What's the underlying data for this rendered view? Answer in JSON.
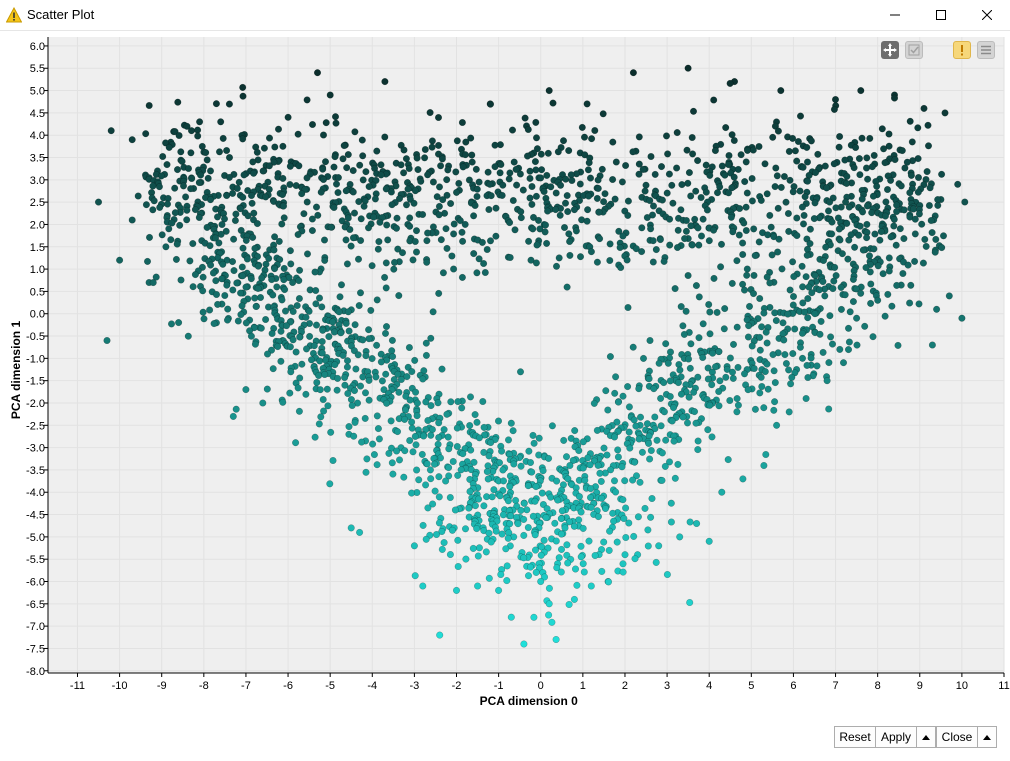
{
  "window": {
    "title": "Scatter Plot",
    "icon": "warning-triangle-icon",
    "controls": [
      "minimize-icon",
      "maximize-icon",
      "close-icon"
    ]
  },
  "toolbar": {
    "icons": [
      "move-pan-icon",
      "select-check-icon",
      "warning-exclamation-icon",
      "menu-lines-icon"
    ]
  },
  "chart_data": {
    "type": "scatter",
    "title": "",
    "xlabel": "PCA dimension 0",
    "ylabel": "PCA dimension 1",
    "xlim": [
      -11.7,
      11
    ],
    "ylim": [
      -8.05,
      6.2
    ],
    "x_ticks": [
      -11,
      -10,
      -9,
      -8,
      -7,
      -6,
      -5,
      -4,
      -3,
      -2,
      -1,
      0,
      1,
      2,
      3,
      4,
      5,
      6,
      7,
      8,
      9,
      10,
      11
    ],
    "y_ticks": [
      "-8.0",
      "-7.5",
      "-7.0",
      "-6.5",
      "-6.0",
      "-5.5",
      "-5.0",
      "-4.5",
      "-4.0",
      "-3.5",
      "-3.0",
      "-2.5",
      "-2.0",
      "-1.5",
      "-1.0",
      "-0.5",
      "0.0",
      "0.5",
      "1.0",
      "1.5",
      "2.0",
      "2.5",
      "3.0",
      "3.5",
      "4.0",
      "4.5",
      "5.0",
      "5.5",
      "6.0"
    ],
    "grid": true,
    "color_gradient": {
      "high": "#0b2d2b",
      "mid": "#17807a",
      "low": "#20e2dc"
    },
    "point_count_approx": 2600,
    "series": [
      {
        "values": [
          [
            -10.5,
            2.5
          ],
          [
            -10.3,
            -0.6
          ],
          [
            -10.2,
            4.1
          ],
          [
            -10.0,
            1.2
          ],
          [
            -9.7,
            3.9
          ],
          [
            -9.7,
            2.1
          ],
          [
            -9.3,
            0.7
          ],
          [
            -9.1,
            3.2
          ],
          [
            -8.9,
            1.5
          ],
          [
            -8.6,
            -0.2
          ],
          [
            -8.4,
            4.2
          ],
          [
            -8.1,
            4.3
          ],
          [
            -7.6,
            4.3
          ],
          [
            -7.3,
            -2.3
          ],
          [
            -7.0,
            -1.7
          ],
          [
            -6.6,
            -2.0
          ],
          [
            -6.0,
            4.4
          ],
          [
            -5.3,
            5.4
          ],
          [
            -5.0,
            4.9
          ],
          [
            -4.5,
            -4.8
          ],
          [
            -4.3,
            -4.9
          ],
          [
            -3.7,
            5.2
          ],
          [
            -3.0,
            -5.2
          ],
          [
            -2.8,
            -6.1
          ],
          [
            -2.4,
            -7.2
          ],
          [
            -2.0,
            -6.2
          ],
          [
            -1.5,
            -6.1
          ],
          [
            -1.0,
            -6.2
          ],
          [
            -0.7,
            -6.8
          ],
          [
            -0.4,
            -7.4
          ],
          [
            0.0,
            -6.0
          ],
          [
            0.2,
            -6.5
          ],
          [
            0.4,
            -5.6
          ],
          [
            0.8,
            -6.4
          ],
          [
            1.2,
            -6.1
          ],
          [
            1.6,
            -6.0
          ],
          [
            2.0,
            -5.4
          ],
          [
            2.3,
            -5.4
          ],
          [
            2.8,
            -5.2
          ],
          [
            3.3,
            -5.0
          ],
          [
            3.7,
            -4.7
          ],
          [
            4.0,
            -5.1
          ],
          [
            4.3,
            -4.0
          ],
          [
            4.8,
            -3.7
          ],
          [
            5.3,
            -3.4
          ],
          [
            5.6,
            -2.5
          ],
          [
            5.9,
            -2.2
          ],
          [
            6.3,
            -1.9
          ],
          [
            6.8,
            -1.5
          ],
          [
            7.1,
            -0.8
          ],
          [
            7.5,
            -0.1
          ],
          [
            8.0,
            0.3
          ],
          [
            8.6,
            0.9
          ],
          [
            9.3,
            -0.7
          ],
          [
            9.4,
            0.1
          ],
          [
            9.7,
            0.4
          ],
          [
            10.0,
            -0.1
          ],
          [
            9.9,
            2.9
          ],
          [
            9.6,
            4.5
          ],
          [
            9.1,
            4.6
          ],
          [
            8.4,
            4.9
          ],
          [
            7.6,
            5.0
          ],
          [
            7.0,
            4.8
          ],
          [
            5.7,
            5.0
          ],
          [
            4.6,
            5.2
          ],
          [
            3.5,
            5.5
          ],
          [
            2.2,
            5.4
          ],
          [
            1.1,
            4.7
          ],
          [
            0.2,
            5.0
          ],
          [
            -1.2,
            4.7
          ]
        ]
      }
    ]
  },
  "buttons": {
    "reset": "Reset",
    "apply": "Apply",
    "close": "Close"
  }
}
